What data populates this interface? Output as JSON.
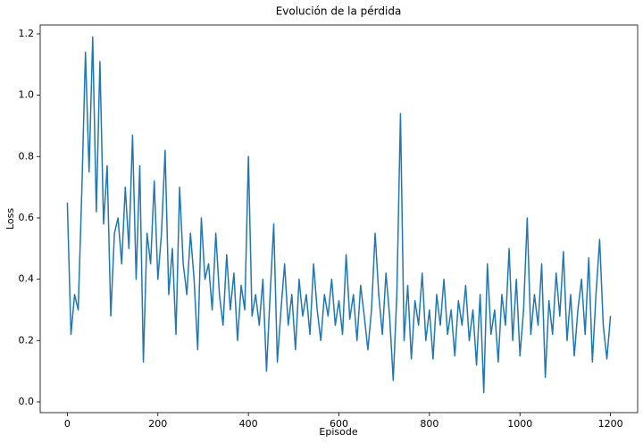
{
  "chart_data": {
    "type": "line",
    "title": "Evolución de la pérdida",
    "x_label": "Episode",
    "y_label": "Loss",
    "color": "#1f77b4",
    "x": [
      0,
      8,
      16,
      24,
      32,
      40,
      48,
      56,
      64,
      72,
      80,
      88,
      96,
      104,
      112,
      120,
      128,
      136,
      144,
      152,
      160,
      168,
      176,
      184,
      192,
      200,
      208,
      216,
      224,
      232,
      240,
      248,
      256,
      264,
      272,
      280,
      288,
      296,
      304,
      312,
      320,
      328,
      336,
      344,
      352,
      360,
      368,
      376,
      384,
      392,
      400,
      408,
      416,
      424,
      432,
      440,
      448,
      456,
      464,
      472,
      480,
      488,
      496,
      504,
      512,
      520,
      528,
      536,
      544,
      552,
      560,
      568,
      576,
      584,
      592,
      600,
      608,
      616,
      624,
      632,
      640,
      648,
      656,
      664,
      672,
      680,
      688,
      696,
      704,
      712,
      720,
      728,
      736,
      744,
      752,
      760,
      768,
      776,
      784,
      792,
      800,
      808,
      816,
      824,
      832,
      840,
      848,
      856,
      864,
      872,
      880,
      888,
      896,
      904,
      912,
      920,
      928,
      936,
      944,
      952,
      960,
      968,
      976,
      984,
      992,
      1000,
      1008,
      1016,
      1024,
      1032,
      1040,
      1048,
      1056,
      1064,
      1072,
      1080,
      1088,
      1096,
      1104,
      1112,
      1120,
      1128,
      1136,
      1144,
      1152,
      1160,
      1168,
      1176,
      1184,
      1192,
      1200
    ],
    "values": [
      0.65,
      0.22,
      0.35,
      0.3,
      0.69,
      1.14,
      0.75,
      1.19,
      0.62,
      1.11,
      0.58,
      0.77,
      0.28,
      0.55,
      0.6,
      0.45,
      0.7,
      0.5,
      0.87,
      0.4,
      0.77,
      0.13,
      0.55,
      0.45,
      0.72,
      0.4,
      0.55,
      0.82,
      0.35,
      0.5,
      0.22,
      0.7,
      0.45,
      0.35,
      0.55,
      0.4,
      0.17,
      0.6,
      0.4,
      0.45,
      0.3,
      0.55,
      0.35,
      0.25,
      0.48,
      0.3,
      0.42,
      0.2,
      0.38,
      0.3,
      0.8,
      0.28,
      0.35,
      0.25,
      0.4,
      0.1,
      0.35,
      0.58,
      0.13,
      0.3,
      0.45,
      0.25,
      0.35,
      0.17,
      0.4,
      0.28,
      0.35,
      0.22,
      0.45,
      0.3,
      0.2,
      0.35,
      0.28,
      0.4,
      0.25,
      0.33,
      0.22,
      0.48,
      0.27,
      0.35,
      0.2,
      0.38,
      0.28,
      0.17,
      0.3,
      0.55,
      0.35,
      0.22,
      0.42,
      0.28,
      0.07,
      0.35,
      0.94,
      0.2,
      0.38,
      0.14,
      0.33,
      0.25,
      0.42,
      0.2,
      0.3,
      0.14,
      0.35,
      0.25,
      0.4,
      0.22,
      0.3,
      0.15,
      0.33,
      0.25,
      0.38,
      0.2,
      0.3,
      0.12,
      0.35,
      0.03,
      0.45,
      0.22,
      0.3,
      0.13,
      0.35,
      0.25,
      0.5,
      0.2,
      0.4,
      0.15,
      0.3,
      0.6,
      0.22,
      0.35,
      0.25,
      0.45,
      0.08,
      0.33,
      0.22,
      0.42,
      0.28,
      0.49,
      0.2,
      0.35,
      0.15,
      0.3,
      0.4,
      0.22,
      0.47,
      0.13,
      0.35,
      0.53,
      0.25,
      0.14,
      0.28
    ],
    "xlim": [
      -60,
      1260
    ],
    "ylim": [
      -0.035,
      1.229
    ],
    "xticks": [
      0,
      200,
      400,
      600,
      800,
      1000,
      1200
    ],
    "yticks": [
      {
        "value": 0,
        "label": "0.0"
      },
      0.2,
      0.4,
      0.6,
      0.8,
      {
        "value": 1,
        "label": "1.0"
      },
      1.2
    ]
  }
}
